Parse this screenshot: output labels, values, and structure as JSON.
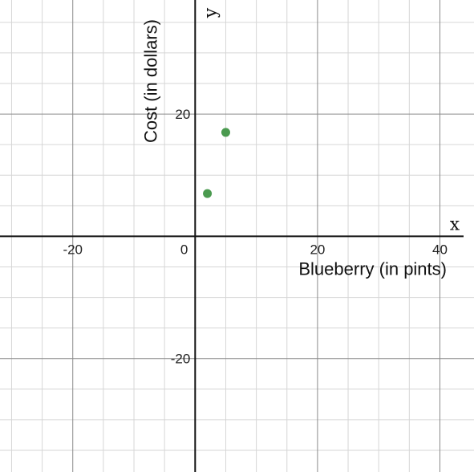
{
  "chart_data": {
    "type": "scatter",
    "xlabel": "Blueberry (in pints)",
    "ylabel": "Cost (in dollars)",
    "x_axis_symbol": "x",
    "y_axis_symbol": "y",
    "xlim": [
      -31.5,
      44
    ],
    "ylim": [
      -37.5,
      38
    ],
    "minor_grid_step": 5,
    "major_grid_step": 20,
    "x_ticks": [
      -20,
      20,
      40
    ],
    "y_ticks": [
      -20,
      20
    ],
    "origin_label": "0",
    "grid": true,
    "series": [
      {
        "color": "#4a9a4f",
        "points": [
          {
            "x": 2,
            "y": 7
          },
          {
            "x": 5,
            "y": 17
          }
        ]
      }
    ]
  },
  "colors": {
    "minor_grid": "#d6d6d6",
    "major_grid": "#8a8a8a",
    "axis": "#111111"
  }
}
